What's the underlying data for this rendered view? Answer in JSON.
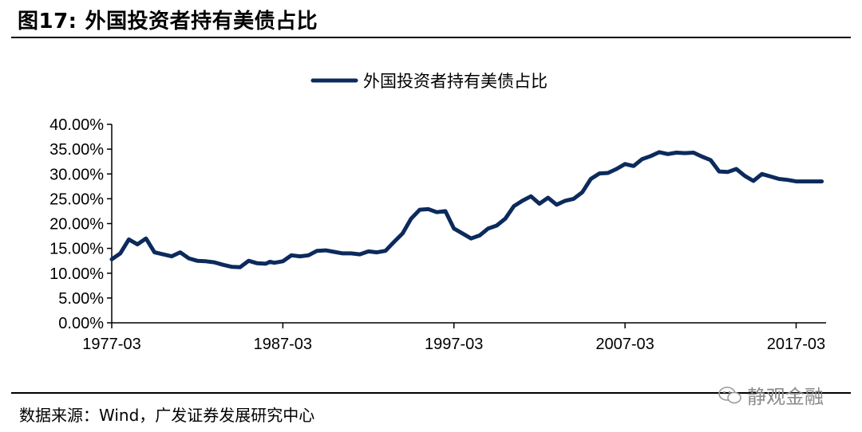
{
  "figure": {
    "number": "图17:",
    "title": "外国投资者持有美债占比"
  },
  "source": "数据来源：Wind，广发证券发展研究中心",
  "watermark": "静观金融",
  "colors": {
    "line": "#0c2a5c",
    "axis": "#000000"
  },
  "chart_data": {
    "type": "line",
    "title": "",
    "legend": "top-center",
    "series": [
      {
        "name": "外国投资者持有美债占比",
        "x": [
          1977.25,
          1977.75,
          1978.25,
          1978.75,
          1979.25,
          1979.75,
          1980.25,
          1980.75,
          1981.25,
          1981.75,
          1982.25,
          1982.75,
          1983.25,
          1983.75,
          1984.25,
          1984.75,
          1985.25,
          1985.75,
          1986.25,
          1986.5,
          1986.75,
          1987.25,
          1987.75,
          1988.25,
          1988.75,
          1989.25,
          1989.75,
          1990.25,
          1990.75,
          1991.25,
          1991.75,
          1992.25,
          1992.75,
          1993.25,
          1993.75,
          1994.25,
          1994.75,
          1995.25,
          1995.75,
          1996.25,
          1996.75,
          1997.25,
          1997.75,
          1998.25,
          1998.75,
          1999.25,
          1999.75,
          2000.25,
          2000.75,
          2001.25,
          2001.75,
          2002.25,
          2002.75,
          2003.25,
          2003.75,
          2004.25,
          2004.75,
          2005.25,
          2005.75,
          2006.25,
          2006.75,
          2007.25,
          2007.75,
          2008.25,
          2008.75,
          2009.25,
          2009.75,
          2010.25,
          2010.75,
          2011.25,
          2011.75,
          2012.25,
          2012.75,
          2013.25,
          2013.75,
          2014.25,
          2014.75,
          2015.25,
          2015.75,
          2016.25,
          2016.75,
          2017.25,
          2017.75,
          2018.25,
          2018.75
        ],
        "values": [
          12.8,
          14.0,
          16.8,
          15.8,
          17.0,
          14.2,
          13.8,
          13.4,
          14.2,
          13.0,
          12.5,
          12.4,
          12.2,
          11.7,
          11.3,
          11.2,
          12.5,
          12.0,
          11.9,
          12.3,
          12.1,
          12.4,
          13.6,
          13.4,
          13.6,
          14.5,
          14.6,
          14.3,
          14.0,
          14.0,
          13.8,
          14.4,
          14.2,
          14.5,
          16.3,
          18.0,
          21.0,
          22.8,
          22.9,
          22.3,
          22.5,
          19.0,
          18.0,
          17.0,
          17.6,
          19.0,
          19.6,
          21.0,
          23.5,
          24.6,
          25.5,
          24.0,
          25.2,
          23.8,
          24.6,
          25.0,
          26.3,
          29.0,
          30.1,
          30.2,
          31.0,
          32.0,
          31.6,
          33.0,
          33.6,
          34.4,
          34.0,
          34.3,
          34.2,
          34.3,
          33.5,
          32.8,
          30.5,
          30.4,
          31.0,
          29.6,
          28.6,
          30.0,
          29.5,
          29.0,
          28.8,
          28.5,
          28.5,
          28.5,
          28.5
        ]
      }
    ],
    "x_ticks": [
      "1977-03",
      "1987-03",
      "1997-03",
      "2007-03",
      "2017-03"
    ],
    "x_tick_values": [
      1977.25,
      1987.25,
      1997.25,
      2007.25,
      2017.25
    ],
    "xlim": [
      1977.25,
      2019.0
    ],
    "y_ticks": [
      "0.00%",
      "5.00%",
      "10.00%",
      "15.00%",
      "20.00%",
      "25.00%",
      "30.00%",
      "35.00%",
      "40.00%"
    ],
    "ylim": [
      0,
      40
    ],
    "grid": false
  }
}
